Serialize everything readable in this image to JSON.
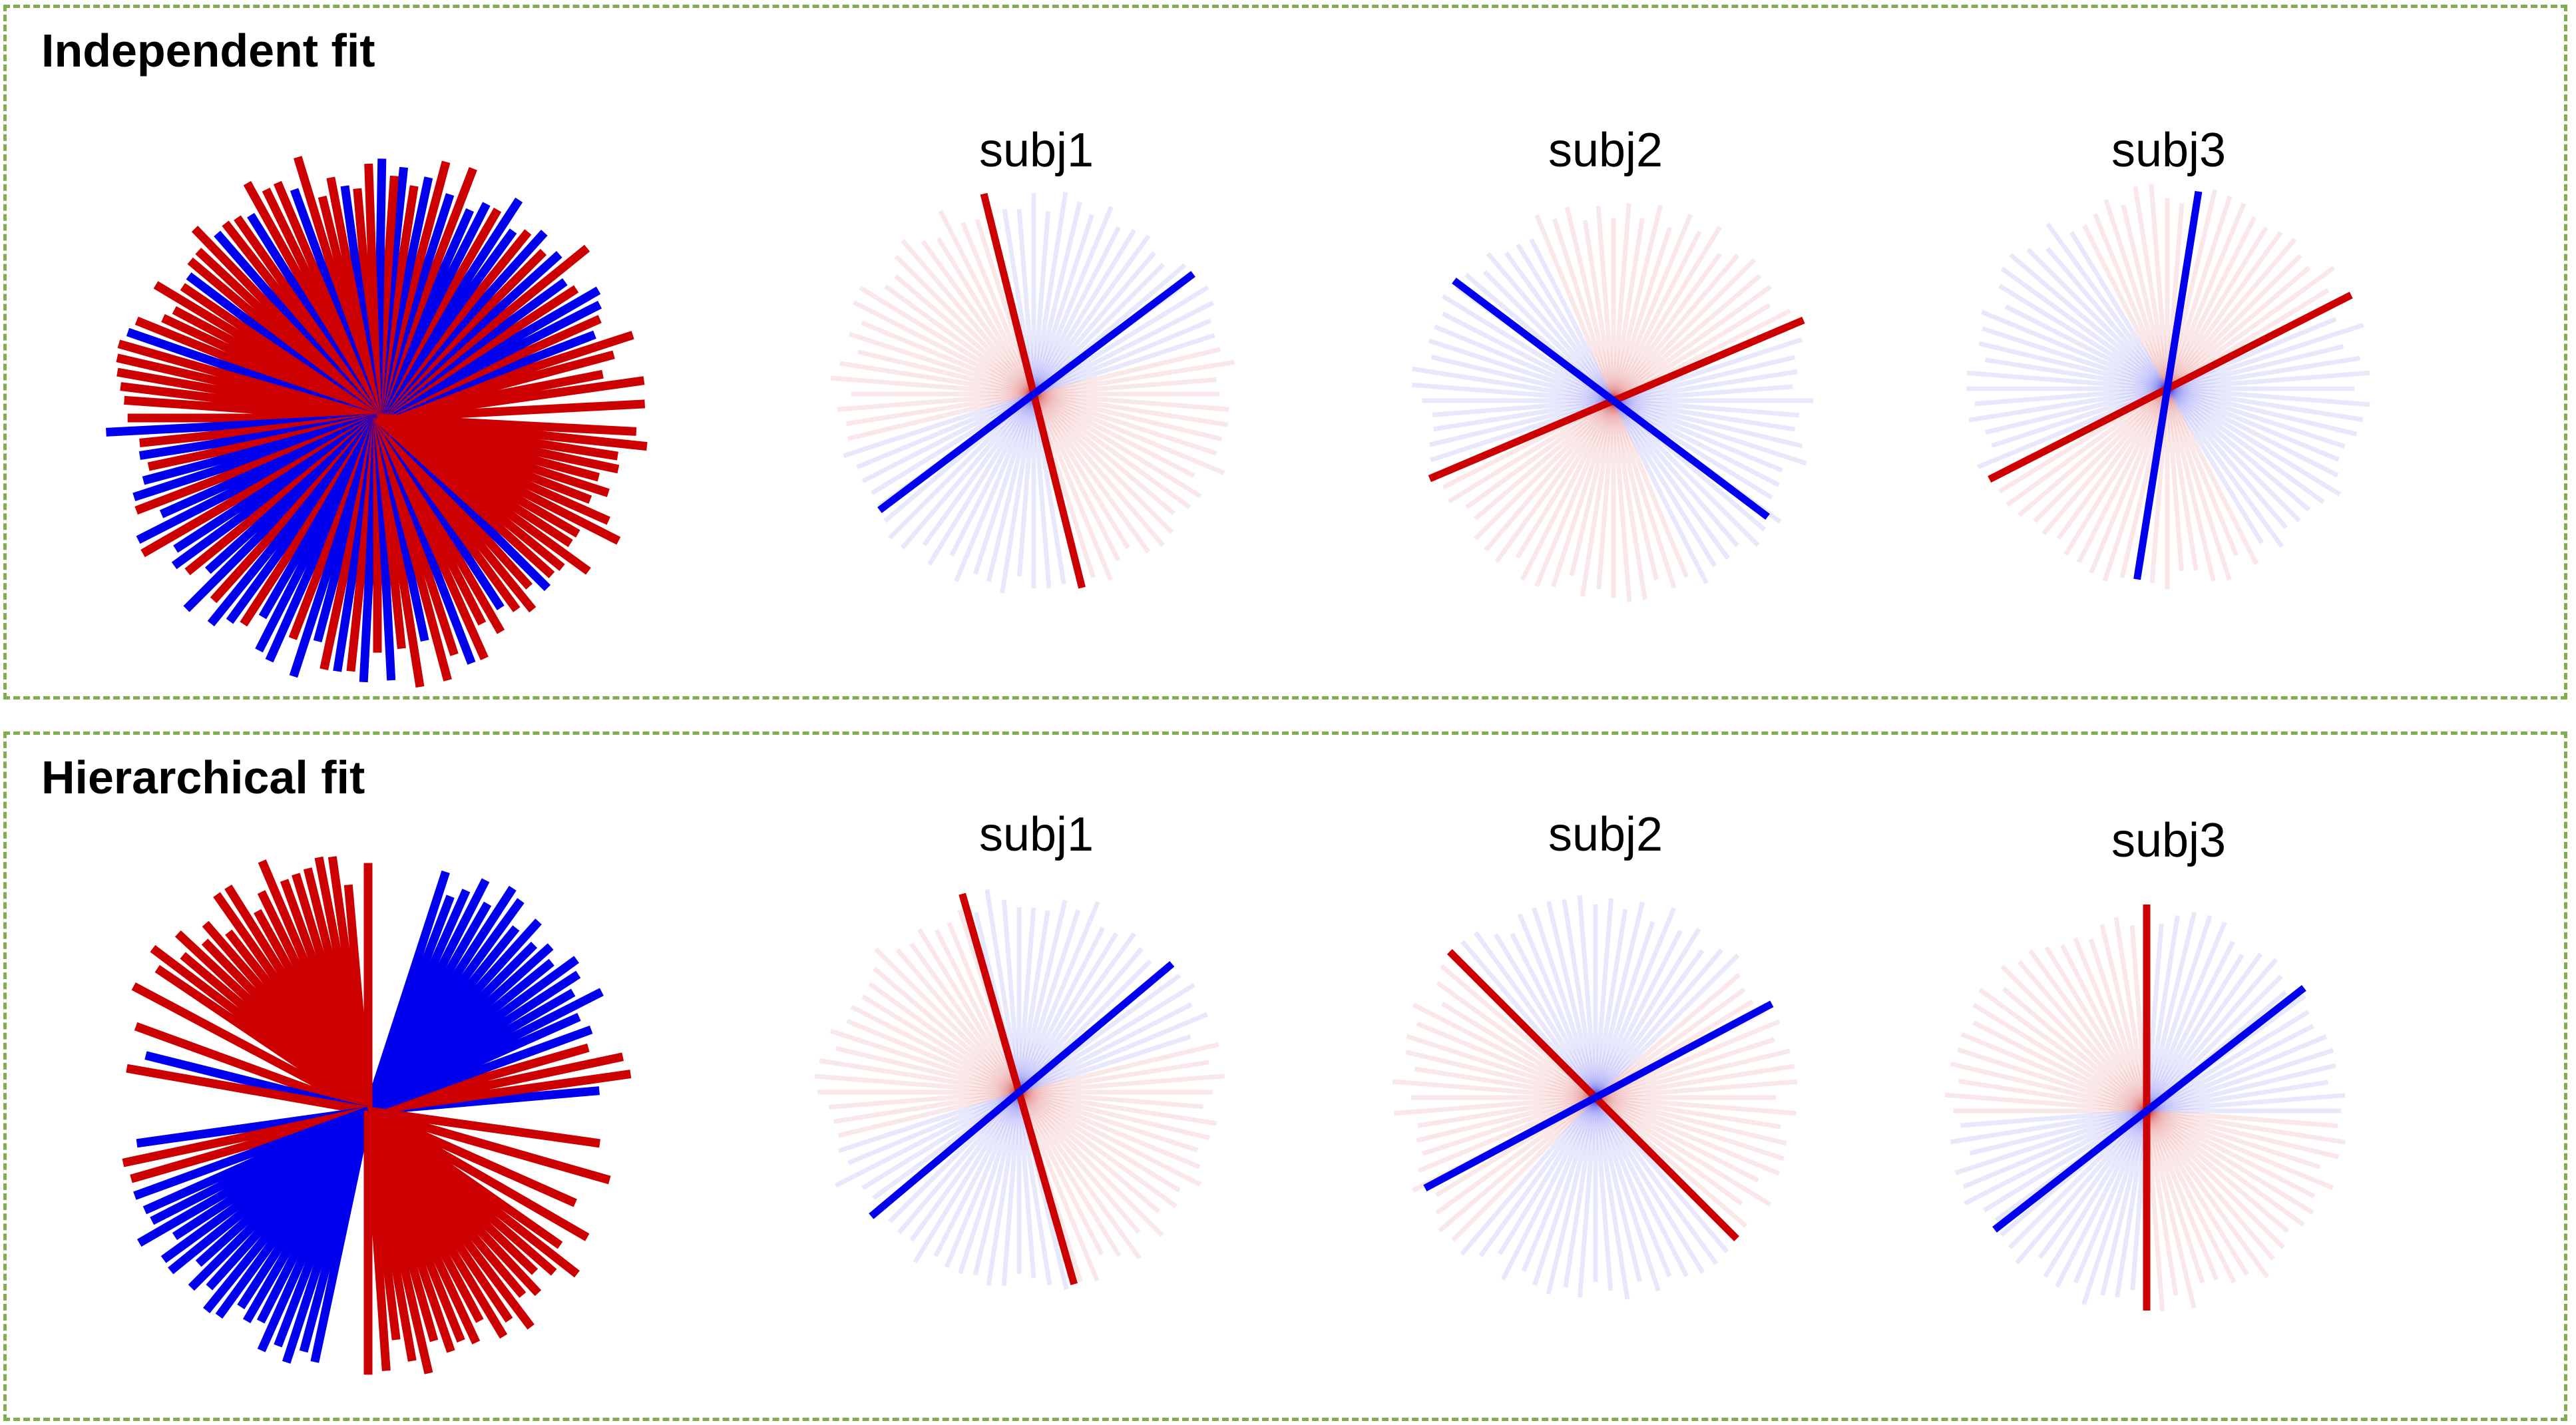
{
  "colors": {
    "red": "#cc0000",
    "blue": "#0000ee",
    "border": "#7fae4f"
  },
  "panels": [
    {
      "title": "Independent fit",
      "aggregate": {
        "lines": [
          {
            "deg": 3,
            "c": "red"
          },
          {
            "deg": 8,
            "c": "red"
          },
          {
            "deg": 11,
            "c": "red"
          },
          {
            "deg": 15,
            "c": "red"
          },
          {
            "deg": 18,
            "c": "red"
          },
          {
            "deg": 21,
            "c": "blue"
          },
          {
            "deg": 24,
            "c": "red"
          },
          {
            "deg": 27,
            "c": "blue"
          },
          {
            "deg": 30,
            "c": "blue"
          },
          {
            "deg": 33,
            "c": "red"
          },
          {
            "deg": 36,
            "c": "blue"
          },
          {
            "deg": 39,
            "c": "red"
          },
          {
            "deg": 42,
            "c": "blue"
          },
          {
            "deg": 45,
            "c": "red"
          },
          {
            "deg": 48,
            "c": "blue"
          },
          {
            "deg": 51,
            "c": "red"
          },
          {
            "deg": 54,
            "c": "blue"
          },
          {
            "deg": 57,
            "c": "blue"
          },
          {
            "deg": 60,
            "c": "red"
          },
          {
            "deg": 63,
            "c": "blue"
          },
          {
            "deg": 66,
            "c": "blue"
          },
          {
            "deg": 69,
            "c": "red"
          },
          {
            "deg": 72,
            "c": "blue"
          },
          {
            "deg": 75,
            "c": "red"
          },
          {
            "deg": 78,
            "c": "blue"
          },
          {
            "deg": 81,
            "c": "red"
          },
          {
            "deg": 84,
            "c": "blue"
          },
          {
            "deg": 86,
            "c": "red"
          },
          {
            "deg": 89,
            "c": "blue"
          },
          {
            "deg": 92,
            "c": "red"
          },
          {
            "deg": 95,
            "c": "red"
          },
          {
            "deg": 98,
            "c": "blue"
          },
          {
            "deg": 101,
            "c": "red"
          },
          {
            "deg": 104,
            "c": "red"
          },
          {
            "deg": 107,
            "c": "red"
          },
          {
            "deg": 110,
            "c": "blue"
          },
          {
            "deg": 113,
            "c": "red"
          },
          {
            "deg": 116,
            "c": "red"
          },
          {
            "deg": 119,
            "c": "red"
          },
          {
            "deg": 122,
            "c": "blue"
          },
          {
            "deg": 125,
            "c": "red"
          },
          {
            "deg": 128,
            "c": "red"
          },
          {
            "deg": 131,
            "c": "blue"
          },
          {
            "deg": 134,
            "c": "red"
          },
          {
            "deg": 137,
            "c": "red"
          },
          {
            "deg": 140,
            "c": "red"
          },
          {
            "deg": 143,
            "c": "blue"
          },
          {
            "deg": 146,
            "c": "red"
          },
          {
            "deg": 149,
            "c": "red"
          },
          {
            "deg": 152,
            "c": "red"
          },
          {
            "deg": 155,
            "c": "red"
          },
          {
            "deg": 158,
            "c": "red"
          },
          {
            "deg": 161,
            "c": "blue"
          },
          {
            "deg": 164,
            "c": "red"
          },
          {
            "deg": 167,
            "c": "red"
          },
          {
            "deg": 170,
            "c": "red"
          },
          {
            "deg": 173,
            "c": "red"
          },
          {
            "deg": 176,
            "c": "red"
          },
          {
            "deg": 180,
            "c": "red"
          },
          {
            "deg": 183,
            "c": "blue"
          },
          {
            "deg": 186,
            "c": "red"
          },
          {
            "deg": 189,
            "c": "blue"
          },
          {
            "deg": 192,
            "c": "red"
          },
          {
            "deg": 195,
            "c": "blue"
          },
          {
            "deg": 198,
            "c": "blue"
          },
          {
            "deg": 201,
            "c": "red"
          },
          {
            "deg": 204,
            "c": "blue"
          },
          {
            "deg": 207,
            "c": "blue"
          },
          {
            "deg": 210,
            "c": "red"
          },
          {
            "deg": 213,
            "c": "blue"
          },
          {
            "deg": 216,
            "c": "blue"
          },
          {
            "deg": 219,
            "c": "red"
          },
          {
            "deg": 222,
            "c": "blue"
          },
          {
            "deg": 225,
            "c": "blue"
          },
          {
            "deg": 228,
            "c": "red"
          },
          {
            "deg": 231,
            "c": "blue"
          },
          {
            "deg": 234,
            "c": "blue"
          },
          {
            "deg": 237,
            "c": "red"
          },
          {
            "deg": 240,
            "c": "blue"
          },
          {
            "deg": 243,
            "c": "blue"
          },
          {
            "deg": 246,
            "c": "blue"
          },
          {
            "deg": 249,
            "c": "red"
          },
          {
            "deg": 252,
            "c": "blue"
          },
          {
            "deg": 255,
            "c": "blue"
          },
          {
            "deg": 258,
            "c": "red"
          },
          {
            "deg": 261,
            "c": "blue"
          },
          {
            "deg": 264,
            "c": "red"
          },
          {
            "deg": 267,
            "c": "blue"
          },
          {
            "deg": 270,
            "c": "red"
          },
          {
            "deg": 273,
            "c": "blue"
          },
          {
            "deg": 276,
            "c": "red"
          },
          {
            "deg": 279,
            "c": "red"
          },
          {
            "deg": 282,
            "c": "blue"
          },
          {
            "deg": 285,
            "c": "red"
          },
          {
            "deg": 288,
            "c": "red"
          },
          {
            "deg": 291,
            "c": "blue"
          },
          {
            "deg": 294,
            "c": "red"
          },
          {
            "deg": 297,
            "c": "red"
          },
          {
            "deg": 300,
            "c": "red"
          },
          {
            "deg": 303,
            "c": "blue"
          },
          {
            "deg": 306,
            "c": "red"
          },
          {
            "deg": 309,
            "c": "red"
          },
          {
            "deg": 312,
            "c": "red"
          },
          {
            "deg": 315,
            "c": "blue"
          },
          {
            "deg": 318,
            "c": "red"
          },
          {
            "deg": 321,
            "c": "red"
          },
          {
            "deg": 324,
            "c": "red"
          },
          {
            "deg": 327,
            "c": "red"
          },
          {
            "deg": 330,
            "c": "red"
          },
          {
            "deg": 333,
            "c": "red"
          },
          {
            "deg": 336,
            "c": "red"
          },
          {
            "deg": 339,
            "c": "red"
          },
          {
            "deg": 342,
            "c": "red"
          },
          {
            "deg": 345,
            "c": "red"
          },
          {
            "deg": 348,
            "c": "red"
          },
          {
            "deg": 351,
            "c": "red"
          },
          {
            "deg": 354,
            "c": "red"
          },
          {
            "deg": 357,
            "c": "red"
          }
        ]
      },
      "subjects": [
        {
          "label": "subj1",
          "red_deg": 104,
          "blue_deg": 37
        },
        {
          "label": "subj2",
          "red_deg": 23,
          "blue_deg": 143
        },
        {
          "label": "subj3",
          "red_deg": 27,
          "blue_deg": 81
        }
      ]
    },
    {
      "title": "Hierarchical fit",
      "aggregate": {
        "lines": [
          {
            "deg": 5,
            "c": "blue"
          },
          {
            "deg": 8,
            "c": "red"
          },
          {
            "deg": 12,
            "c": "red"
          },
          {
            "deg": 16,
            "c": "red"
          },
          {
            "deg": 20,
            "c": "blue"
          },
          {
            "deg": 24,
            "c": "blue"
          },
          {
            "deg": 27,
            "c": "blue"
          },
          {
            "deg": 30,
            "c": "blue"
          },
          {
            "deg": 33,
            "c": "blue"
          },
          {
            "deg": 36,
            "c": "blue"
          },
          {
            "deg": 39,
            "c": "blue"
          },
          {
            "deg": 42,
            "c": "blue"
          },
          {
            "deg": 45,
            "c": "blue"
          },
          {
            "deg": 48,
            "c": "blue"
          },
          {
            "deg": 51,
            "c": "blue"
          },
          {
            "deg": 54,
            "c": "blue"
          },
          {
            "deg": 57,
            "c": "blue"
          },
          {
            "deg": 60,
            "c": "blue"
          },
          {
            "deg": 63,
            "c": "blue"
          },
          {
            "deg": 66,
            "c": "blue"
          },
          {
            "deg": 69,
            "c": "blue"
          },
          {
            "deg": 72,
            "c": "blue"
          },
          {
            "deg": 90,
            "c": "red"
          },
          {
            "deg": 95,
            "c": "red"
          },
          {
            "deg": 98,
            "c": "red"
          },
          {
            "deg": 101,
            "c": "red"
          },
          {
            "deg": 104,
            "c": "red"
          },
          {
            "deg": 107,
            "c": "red"
          },
          {
            "deg": 110,
            "c": "red"
          },
          {
            "deg": 113,
            "c": "red"
          },
          {
            "deg": 116,
            "c": "red"
          },
          {
            "deg": 119,
            "c": "red"
          },
          {
            "deg": 122,
            "c": "red"
          },
          {
            "deg": 125,
            "c": "red"
          },
          {
            "deg": 128,
            "c": "red"
          },
          {
            "deg": 131,
            "c": "red"
          },
          {
            "deg": 134,
            "c": "red"
          },
          {
            "deg": 137,
            "c": "red"
          },
          {
            "deg": 140,
            "c": "red"
          },
          {
            "deg": 143,
            "c": "red"
          },
          {
            "deg": 146,
            "c": "red"
          },
          {
            "deg": 152,
            "c": "red"
          },
          {
            "deg": 160,
            "c": "red"
          },
          {
            "deg": 166,
            "c": "blue"
          },
          {
            "deg": 170,
            "c": "red"
          },
          {
            "deg": 188,
            "c": "blue"
          },
          {
            "deg": 192,
            "c": "red"
          },
          {
            "deg": 196,
            "c": "red"
          },
          {
            "deg": 200,
            "c": "blue"
          },
          {
            "deg": 204,
            "c": "blue"
          },
          {
            "deg": 207,
            "c": "blue"
          },
          {
            "deg": 210,
            "c": "blue"
          },
          {
            "deg": 213,
            "c": "blue"
          },
          {
            "deg": 216,
            "c": "blue"
          },
          {
            "deg": 219,
            "c": "blue"
          },
          {
            "deg": 222,
            "c": "blue"
          },
          {
            "deg": 225,
            "c": "blue"
          },
          {
            "deg": 228,
            "c": "blue"
          },
          {
            "deg": 231,
            "c": "blue"
          },
          {
            "deg": 234,
            "c": "blue"
          },
          {
            "deg": 237,
            "c": "blue"
          },
          {
            "deg": 240,
            "c": "blue"
          },
          {
            "deg": 243,
            "c": "blue"
          },
          {
            "deg": 246,
            "c": "blue"
          },
          {
            "deg": 249,
            "c": "blue"
          },
          {
            "deg": 252,
            "c": "blue"
          },
          {
            "deg": 255,
            "c": "blue"
          },
          {
            "deg": 258,
            "c": "blue"
          },
          {
            "deg": 270,
            "c": "red"
          },
          {
            "deg": 274,
            "c": "red"
          },
          {
            "deg": 277,
            "c": "red"
          },
          {
            "deg": 280,
            "c": "red"
          },
          {
            "deg": 283,
            "c": "red"
          },
          {
            "deg": 286,
            "c": "red"
          },
          {
            "deg": 289,
            "c": "red"
          },
          {
            "deg": 292,
            "c": "red"
          },
          {
            "deg": 295,
            "c": "red"
          },
          {
            "deg": 298,
            "c": "red"
          },
          {
            "deg": 301,
            "c": "red"
          },
          {
            "deg": 304,
            "c": "red"
          },
          {
            "deg": 307,
            "c": "red"
          },
          {
            "deg": 310,
            "c": "red"
          },
          {
            "deg": 313,
            "c": "red"
          },
          {
            "deg": 316,
            "c": "red"
          },
          {
            "deg": 319,
            "c": "red"
          },
          {
            "deg": 322,
            "c": "red"
          },
          {
            "deg": 325,
            "c": "red"
          },
          {
            "deg": 330,
            "c": "red"
          },
          {
            "deg": 336,
            "c": "red"
          },
          {
            "deg": 344,
            "c": "red"
          },
          {
            "deg": 352,
            "c": "red"
          }
        ]
      },
      "subjects": [
        {
          "label": "subj1",
          "red_deg": 106,
          "blue_deg": 40
        },
        {
          "label": "subj2",
          "red_deg": 135,
          "blue_deg": 28
        },
        {
          "label": "subj3",
          "red_deg": 90,
          "blue_deg": 38
        }
      ]
    }
  ]
}
